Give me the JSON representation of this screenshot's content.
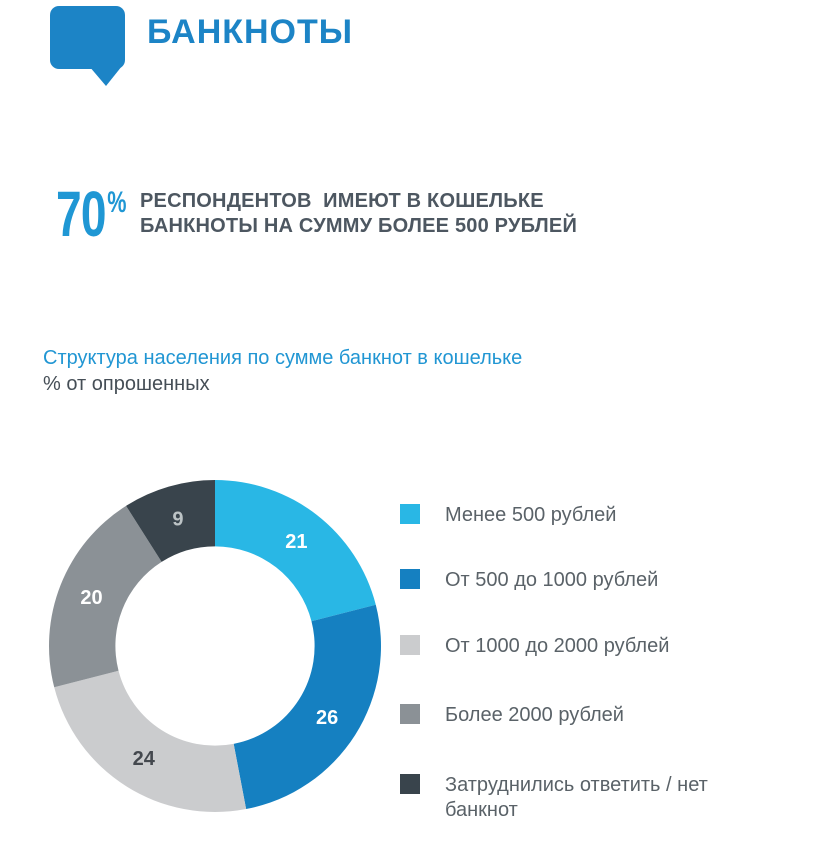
{
  "header": {
    "title": "БАНКНОТЫ",
    "icon": "speech-bubble-icon"
  },
  "stat": {
    "value": "70",
    "percent_sign": "%",
    "description": "РЕСПОНДЕНТОВ  ИМЕЮТ В КОШЕЛЬКЕ\nБАНКНОТЫ НА СУММУ БОЛЕЕ 500 РУБЛЕЙ"
  },
  "chart_data": {
    "type": "pie",
    "variant": "donut",
    "title": "Структура населения по сумме банкнот в кошельке",
    "unit_label": "% от опрошенных",
    "direction": "clockwise",
    "start_angle_deg": 0,
    "inner_radius_ratio": 0.6,
    "legend_position": "right",
    "total": 100,
    "segments": [
      {
        "label": "Менее 500 рублей",
        "value": 21,
        "color": "#29b7e5",
        "label_color": "#ffffff"
      },
      {
        "label": "От 500 до 1000 рублей",
        "value": 26,
        "color": "#1580c1",
        "label_color": "#ffffff"
      },
      {
        "label": "От 1000 до 2000 рублей",
        "value": 24,
        "color": "#cbccce",
        "label_color": "#44484e"
      },
      {
        "label": "Более 2000 рублей",
        "value": 20,
        "color": "#8b9196",
        "label_color": "#ffffff"
      },
      {
        "label": "Затруднились ответить / нет банкнот",
        "value": 9,
        "color": "#39444c",
        "label_color": "#bcc3c5"
      }
    ]
  },
  "colors": {
    "header_blue": "#1c84c6",
    "stat_blue": "#1f97d4",
    "title_blue": "#2196d3",
    "text_dark": "#4d5761",
    "legend_text": "#5a6268"
  }
}
